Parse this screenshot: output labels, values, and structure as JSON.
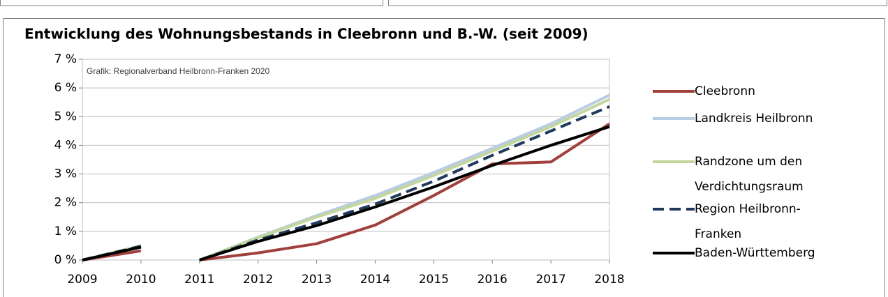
{
  "chart_data": {
    "type": "line",
    "title": "Entwicklung des Wohnungsbestands in Cleebronn und B.-W. (seit 2009)",
    "annotation": "Grafik: Regionalverband Heilbronn-Franken 2020",
    "x": [
      2009,
      2010,
      2011,
      2011,
      2012,
      2013,
      2014,
      2015,
      2016,
      2017,
      2018
    ],
    "series": [
      {
        "name": "Cleebronn",
        "color": "#a0403c",
        "values": [
          0,
          0.32,
          null,
          0,
          0.25,
          0.57,
          1.22,
          2.25,
          3.35,
          3.42,
          4.75
        ]
      },
      {
        "name": "Landkreis Heilbronn",
        "color": "#b8cce4",
        "values": [
          0,
          0.5,
          null,
          0,
          0.8,
          1.55,
          2.25,
          3.05,
          3.9,
          4.75,
          5.75
        ]
      },
      {
        "name": "Randzone um den Verdichtungsraum",
        "color": "#c3d69b",
        "values": [
          0,
          0.5,
          null,
          0,
          0.78,
          1.5,
          2.15,
          2.95,
          3.8,
          4.65,
          5.6
        ]
      },
      {
        "name": "Region Heilbronn-Franken",
        "color": "#1f3a5a",
        "dashed": true,
        "values": [
          0,
          0.48,
          null,
          0,
          0.7,
          1.3,
          1.95,
          2.75,
          3.65,
          4.5,
          5.35
        ]
      },
      {
        "name": "Baden-Württemberg",
        "color": "#000000",
        "values": [
          0,
          0.45,
          null,
          0,
          0.65,
          1.2,
          1.85,
          2.55,
          3.3,
          4.0,
          4.65
        ]
      }
    ],
    "xlim": [
      2009,
      2018
    ],
    "xticks": [
      2009,
      2010,
      2011,
      2012,
      2013,
      2014,
      2015,
      2016,
      2017,
      2018
    ],
    "ylim": [
      0,
      7
    ],
    "yticks": [
      {
        "value": 0,
        "label": "0 %"
      },
      {
        "value": 1,
        "label": "1 %"
      },
      {
        "value": 2,
        "label": "2 %"
      },
      {
        "value": 3,
        "label": "3 %"
      },
      {
        "value": 4,
        "label": "4 %"
      },
      {
        "value": 5,
        "label": "5 %"
      },
      {
        "value": 6,
        "label": "6 %"
      },
      {
        "value": 7,
        "label": "7 %"
      }
    ],
    "grid": true,
    "legend": "right"
  }
}
